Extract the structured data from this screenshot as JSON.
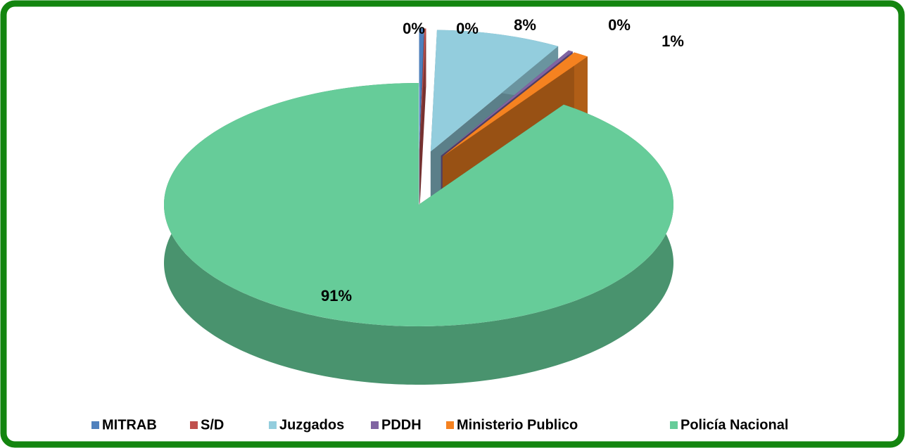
{
  "chart_data": {
    "type": "pie",
    "categories": [
      "MITRAB",
      "S/D",
      "Juzgados",
      "PDDH",
      "Ministerio Publico",
      "Policía Nacional"
    ],
    "values": [
      0.3,
      0.1,
      8,
      0.3,
      1,
      91
    ],
    "value_labels": [
      "0%",
      "0%",
      "8%",
      "0%",
      "1%",
      "91%"
    ],
    "colors": [
      "#4f81bd",
      "#c0504d",
      "#93cddd",
      "#8064a2",
      "#f58220",
      "#66cc99"
    ],
    "legend": "bottom"
  }
}
